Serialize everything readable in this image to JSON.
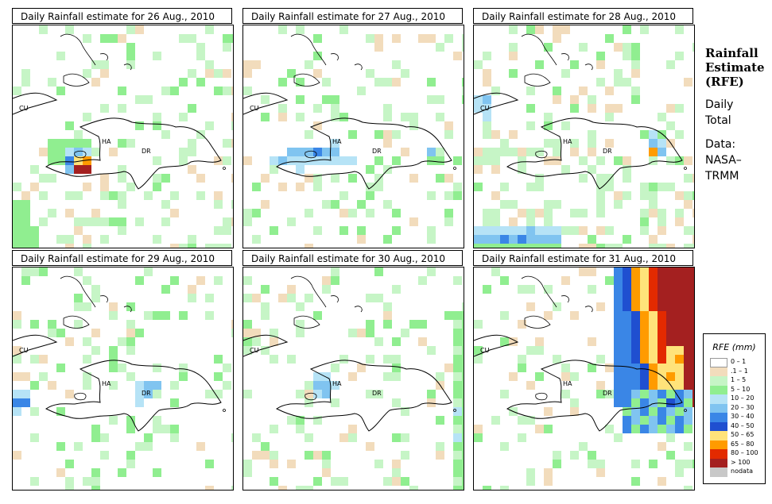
{
  "panels": [
    {
      "title": "Daily Rainfall estimate for  26 Aug., 2010"
    },
    {
      "title": "Daily Rainfall estimate for  27 Aug., 2010"
    },
    {
      "title": "Daily Rainfall estimate for  28 Aug., 2010"
    },
    {
      "title": "Daily Rainfall estimate for  29 Aug., 2010"
    },
    {
      "title": "Daily Rainfall estimate for  30 Aug., 2010"
    },
    {
      "title": "Daily Rainfall estimate for  31 Aug., 2010"
    }
  ],
  "map_labels": {
    "cuba": "CU",
    "haiti": "HA",
    "dr": "DR"
  },
  "side": {
    "title_lines": [
      "Rainfall",
      "Estimate",
      "(RFE)"
    ],
    "daily": [
      "Daily",
      "Total"
    ],
    "data": [
      "Data:",
      "NASA–",
      "TRMM"
    ]
  },
  "legend": {
    "title": "RFE (mm)",
    "items": [
      {
        "label": "0 – 1",
        "color": "#ffffff"
      },
      {
        "label": ".1 – 1",
        "color": "#f2dcbc"
      },
      {
        "label": "1 – 5",
        "color": "#c6f5c6"
      },
      {
        "label": "5 – 10",
        "color": "#90ee90"
      },
      {
        "label": "10 – 20",
        "color": "#b6e3f6"
      },
      {
        "label": "20 – 30",
        "color": "#80c4f0"
      },
      {
        "label": "30 – 40",
        "color": "#3a86e6"
      },
      {
        "label": "40 – 50",
        "color": "#1f4fd0"
      },
      {
        "label": "50 – 65",
        "color": "#ffe37a"
      },
      {
        "label": "65 – 80",
        "color": "#ff9b00"
      },
      {
        "label": "80 – 100",
        "color": "#e32a00"
      },
      {
        "label": "> 100",
        "color": "#a42020"
      },
      {
        "label": "nodata",
        "color": "#c8c8c8"
      }
    ]
  }
}
